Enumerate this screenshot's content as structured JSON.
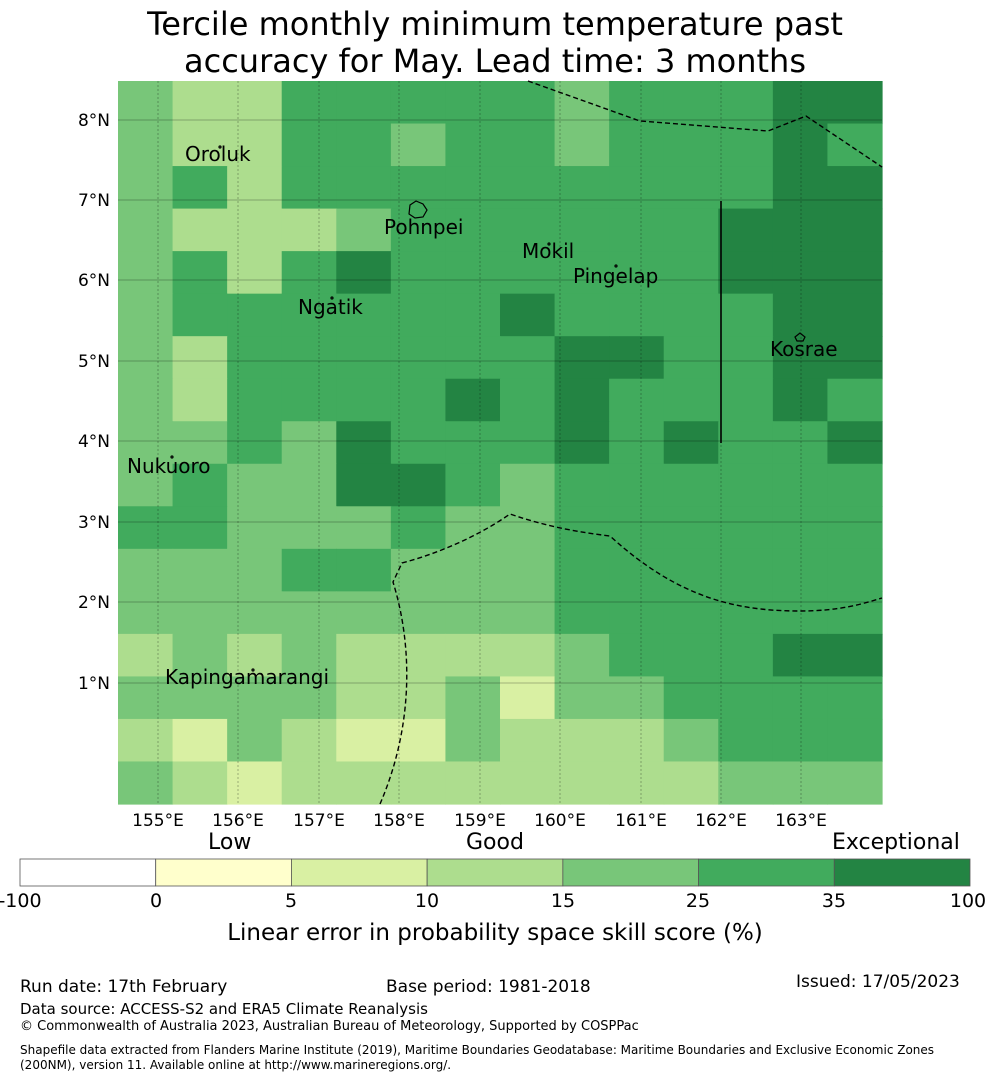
{
  "title": {
    "line1": "Tercile monthly minimum temperature past",
    "line2": "accuracy for May. Lead time: 3 months"
  },
  "map": {
    "lat_labels": [
      "8°N",
      "7°N",
      "6°N",
      "5°N",
      "4°N",
      "3°N",
      "2°N",
      "1°N"
    ],
    "lon_labels": [
      "155°E",
      "156°E",
      "157°E",
      "158°E",
      "159°E",
      "160°E",
      "161°E",
      "162°E",
      "163°E"
    ],
    "places": [
      "Oroluk",
      "Pohnpei",
      "Mokil",
      "Pingelap",
      "Ngatik",
      "Kosrae",
      "Nukuoro",
      "Kapingamarangi"
    ],
    "skill_classes": [
      "-100 to 0",
      "0 to 5",
      "5 to 10",
      "10 to 15",
      "15 to 25",
      "25 to 35",
      "35 to 100"
    ],
    "grid_skill_class": [
      [
        4,
        3,
        3,
        5,
        5,
        5,
        5,
        5,
        4,
        5,
        5,
        5,
        6,
        6
      ],
      [
        4,
        3,
        3,
        5,
        5,
        4,
        5,
        5,
        4,
        5,
        5,
        5,
        6,
        5
      ],
      [
        4,
        5,
        3,
        5,
        5,
        5,
        5,
        5,
        5,
        5,
        5,
        5,
        6,
        6
      ],
      [
        4,
        3,
        3,
        3,
        4,
        5,
        5,
        5,
        5,
        5,
        5,
        6,
        6,
        6
      ],
      [
        4,
        5,
        3,
        5,
        6,
        5,
        5,
        5,
        5,
        5,
        5,
        6,
        6,
        6
      ],
      [
        4,
        5,
        5,
        5,
        5,
        5,
        5,
        6,
        5,
        5,
        5,
        5,
        6,
        6
      ],
      [
        4,
        3,
        5,
        5,
        5,
        5,
        5,
        5,
        6,
        6,
        5,
        5,
        6,
        6
      ],
      [
        4,
        3,
        5,
        5,
        5,
        5,
        6,
        5,
        6,
        5,
        5,
        5,
        6,
        5
      ],
      [
        4,
        4,
        5,
        4,
        6,
        5,
        5,
        5,
        6,
        5,
        6,
        5,
        5,
        6
      ],
      [
        4,
        5,
        4,
        4,
        6,
        6,
        5,
        4,
        5,
        5,
        5,
        5,
        5,
        5
      ],
      [
        5,
        5,
        4,
        4,
        4,
        5,
        4,
        4,
        5,
        5,
        5,
        5,
        5,
        5
      ],
      [
        4,
        4,
        4,
        5,
        5,
        4,
        4,
        4,
        5,
        5,
        5,
        5,
        5,
        5
      ],
      [
        4,
        4,
        4,
        4,
        4,
        4,
        4,
        4,
        5,
        5,
        5,
        5,
        5,
        5
      ],
      [
        3,
        4,
        3,
        4,
        3,
        3,
        3,
        3,
        4,
        5,
        5,
        5,
        6,
        6
      ],
      [
        4,
        4,
        4,
        4,
        3,
        3,
        4,
        2,
        4,
        4,
        5,
        5,
        5,
        5
      ],
      [
        3,
        2,
        4,
        3,
        2,
        2,
        4,
        3,
        3,
        3,
        4,
        5,
        5,
        5
      ],
      [
        4,
        3,
        2,
        3,
        3,
        3,
        3,
        3,
        3,
        3,
        3,
        4,
        4,
        4
      ]
    ]
  },
  "colorbar": {
    "category_labels": [
      "Low",
      "Good",
      "Exceptional"
    ],
    "ticks": [
      "-100",
      "0",
      "5",
      "10",
      "15",
      "25",
      "35",
      "100"
    ],
    "colors": [
      "#ffffff",
      "#ffffcc",
      "#d9f0a3",
      "#addd8e",
      "#78c679",
      "#41ab5d",
      "#238443"
    ],
    "title": "Linear error in probability space skill score (%)"
  },
  "footer": {
    "run_date": "Run date: 17th February",
    "base_period": "Base period: 1981-2018",
    "issued": "Issued: 17/05/2023",
    "data_source": "Data source: ACCESS-S2 and ERA5 Climate Reanalysis",
    "copyright": "© Commonwealth of Australia 2023, Australian Bureau of Meteorology, Supported by COSPPac",
    "shapefile_line1": "Shapefile data extracted from Flanders Marine Institute (2019), Maritime Boundaries Geodatabase: Maritime Boundaries and Exclusive Economic Zones",
    "shapefile_line2": "(200NM), version 11. Available online at http://www.marineregions.org/."
  }
}
